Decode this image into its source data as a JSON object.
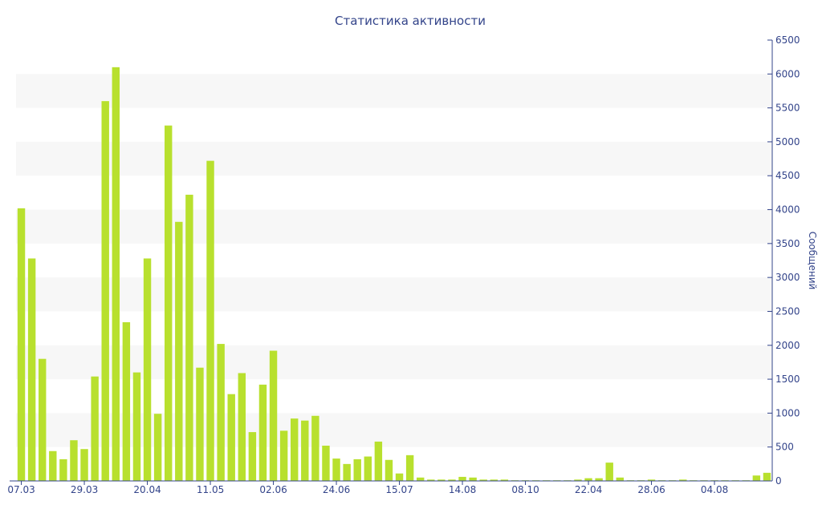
{
  "chart_data": {
    "type": "bar",
    "title": "Статистика активности",
    "xlabel": "",
    "ylabel": "Сообщений",
    "ylim": [
      0,
      6500
    ],
    "y_ticks": [
      0,
      500,
      1000,
      1500,
      2000,
      2500,
      3000,
      3500,
      4000,
      4500,
      5000,
      5500,
      6000,
      6500
    ],
    "x_tick_labels": [
      "07.03",
      "29.03",
      "20.04",
      "11.05",
      "02.06",
      "24.06",
      "15.07",
      "14.08",
      "08.10",
      "22.04",
      "28.06",
      "04.08"
    ],
    "x_tick_positions": [
      0,
      6,
      12,
      18,
      24,
      30,
      36,
      42,
      48,
      54,
      60,
      66
    ],
    "values": [
      4020,
      3280,
      1800,
      440,
      320,
      600,
      470,
      1540,
      5600,
      6100,
      2340,
      1600,
      3280,
      990,
      5240,
      3820,
      4220,
      1670,
      4720,
      2020,
      1280,
      1590,
      720,
      1420,
      1920,
      740,
      920,
      890,
      960,
      520,
      330,
      250,
      320,
      360,
      580,
      310,
      110,
      380,
      50,
      20,
      20,
      20,
      60,
      50,
      20,
      20,
      20,
      10,
      10,
      10,
      10,
      10,
      10,
      20,
      40,
      40,
      270,
      50,
      10,
      10,
      20,
      10,
      10,
      20,
      10,
      10,
      10,
      10,
      10,
      10,
      80,
      120
    ],
    "grid": "alternating horizontal bands",
    "y_axis_side": "right",
    "colors": {
      "bar": "#b8e02e",
      "band": "#f7f7f7",
      "axis": "#33448a",
      "text": "#33448a"
    }
  }
}
